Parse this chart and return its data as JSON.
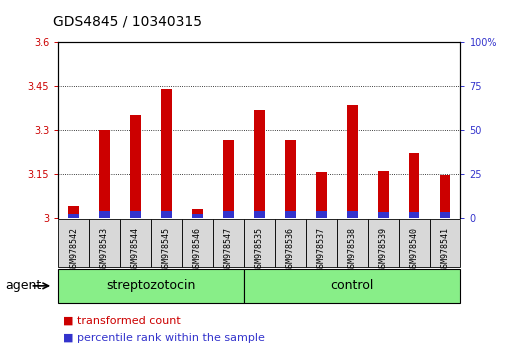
{
  "title": "GDS4845 / 10340315",
  "samples": [
    "GSM978542",
    "GSM978543",
    "GSM978544",
    "GSM978545",
    "GSM978546",
    "GSM978547",
    "GSM978535",
    "GSM978536",
    "GSM978537",
    "GSM978538",
    "GSM978539",
    "GSM978540",
    "GSM978541"
  ],
  "red_values": [
    3.04,
    3.3,
    3.35,
    3.44,
    3.03,
    3.265,
    3.37,
    3.265,
    3.155,
    3.385,
    3.16,
    3.22,
    3.145
  ],
  "blue_pct": [
    2,
    4,
    4,
    4,
    2,
    4,
    4,
    4,
    4,
    4,
    3,
    3,
    3
  ],
  "ymin": 3.0,
  "ymax": 3.6,
  "yticks": [
    3.0,
    3.15,
    3.3,
    3.45,
    3.6
  ],
  "ytick_labels": [
    "3",
    "3.15",
    "3.3",
    "3.45",
    "3.6"
  ],
  "y2min": 0,
  "y2max": 100,
  "y2ticks": [
    0,
    25,
    50,
    75,
    100
  ],
  "y2tick_labels": [
    "0",
    "25",
    "50",
    "75",
    "100%"
  ],
  "group1": "streptozotocin",
  "group2": "control",
  "group1_count": 6,
  "group2_count": 7,
  "agent_label": "agent",
  "legend_red": "transformed count",
  "legend_blue": "percentile rank within the sample",
  "red_color": "#cc0000",
  "blue_color": "#3333cc",
  "group_bg": "#88ee88",
  "bar_bg": "#d8d8d8",
  "plot_bg": "#ffffff",
  "bar_width": 0.35,
  "title_fontsize": 10,
  "tick_fontsize": 7,
  "sample_fontsize": 6,
  "legend_fontsize": 8,
  "group_fontsize": 9
}
